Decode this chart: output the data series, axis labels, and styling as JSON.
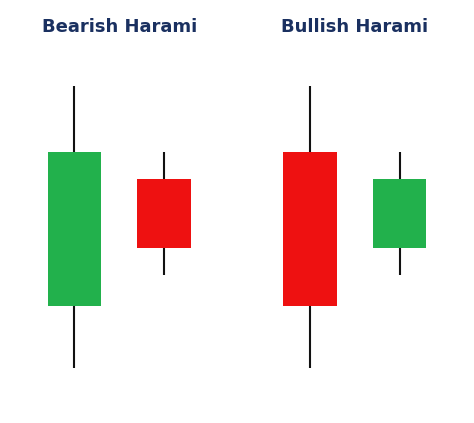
{
  "title_left": "Bearish Harami",
  "title_right": "Bullish Harami",
  "title_color": "#1a3060",
  "title_fontsize": 13,
  "background_color": "#ffffff",
  "candle_linewidth": 1.5,
  "candle_linecolor": "#111111",
  "green_color": "#22b14c",
  "red_color": "#ee1111",
  "bearish_harami": {
    "candle1": {
      "x": 1.0,
      "open": 2.8,
      "close": 6.8,
      "high": 8.5,
      "low": 1.2,
      "color": "green"
    },
    "candle2": {
      "x": 2.1,
      "open": 6.1,
      "close": 4.3,
      "high": 6.8,
      "low": 3.6,
      "color": "red"
    }
  },
  "bullish_harami": {
    "candle1": {
      "x": 3.9,
      "open": 6.8,
      "close": 2.8,
      "high": 8.5,
      "low": 1.2,
      "color": "red"
    },
    "candle2": {
      "x": 5.0,
      "open": 4.3,
      "close": 6.1,
      "high": 6.8,
      "low": 3.6,
      "color": "green"
    }
  },
  "xlim": [
    0.2,
    5.8
  ],
  "ylim": [
    0.0,
    10.5
  ]
}
